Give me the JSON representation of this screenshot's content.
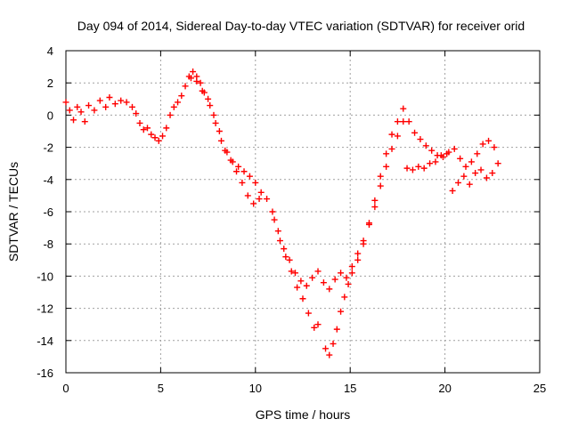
{
  "chart_data": {
    "type": "scatter",
    "title": "Day 094 of 2014, Sidereal Day-to-day VTEC variation (SDTVAR) for receiver orid",
    "xlabel": "GPS time / hours",
    "ylabel": "SDTVAR / TECUs",
    "xlim": [
      0,
      25
    ],
    "ylim": [
      -16,
      4
    ],
    "xticks": [
      0,
      5,
      10,
      15,
      20,
      25
    ],
    "yticks": [
      -16,
      -14,
      -12,
      -10,
      -8,
      -6,
      -4,
      -2,
      0,
      2,
      4
    ],
    "grid": true,
    "marker": "+",
    "color": "#ff0000",
    "series": [
      {
        "x": [
          0.0,
          0.2,
          0.4,
          0.6,
          0.8,
          1.0,
          1.2,
          1.5,
          1.8,
          2.1,
          2.3,
          2.6,
          2.9,
          3.2,
          3.5,
          3.7,
          3.9,
          4.1,
          4.3,
          4.5,
          4.7,
          4.9,
          5.1,
          5.3,
          5.5,
          5.7,
          5.9,
          6.1,
          6.3,
          6.5,
          6.7,
          6.9,
          7.1,
          7.3,
          7.6,
          7.9,
          8.2,
          8.5,
          8.8,
          9.1,
          9.4,
          9.7,
          10.0,
          10.3,
          10.6,
          10.9,
          11.2,
          11.5,
          11.8,
          12.1,
          12.4,
          12.7,
          13.0,
          13.3,
          13.6,
          13.9,
          14.2,
          14.5,
          14.8,
          15.1,
          15.4,
          15.7,
          16.0,
          16.3,
          16.6,
          16.9,
          17.2,
          17.5,
          17.8,
          18.1,
          18.4,
          18.7,
          19.0,
          19.3,
          19.6,
          19.9,
          20.2,
          20.5,
          20.8,
          21.1,
          21.4,
          21.7,
          22.0,
          22.3,
          22.6
        ],
        "y": [
          0.8,
          0.3,
          -0.3,
          0.5,
          0.2,
          -0.4,
          0.6,
          0.3,
          0.9,
          0.5,
          1.1,
          0.7,
          0.9,
          0.8,
          0.5,
          0.1,
          -0.5,
          -0.9,
          -0.8,
          -1.2,
          -1.4,
          -1.6,
          -1.3,
          -0.8,
          0.0,
          0.5,
          0.8,
          1.2,
          1.8,
          2.4,
          2.7,
          2.4,
          2.0,
          1.4,
          0.6,
          -0.5,
          -1.6,
          -2.3,
          -2.9,
          -3.2,
          -3.5,
          -3.8,
          -4.2,
          -4.8,
          -5.2,
          -6.0,
          -7.2,
          -8.3,
          -9.0,
          -9.8,
          -10.3,
          -10.6,
          -10.1,
          -9.7,
          -10.4,
          -10.8,
          -10.2,
          -9.8,
          -10.1,
          -9.4,
          -8.6,
          -7.8,
          -6.7,
          -5.3,
          -3.8,
          -2.4,
          -1.2,
          -0.4,
          0.4,
          -0.4,
          -1.1,
          -1.5,
          -1.9,
          -2.2,
          -2.5,
          -2.6,
          -2.3,
          -2.1,
          -2.7,
          -3.2,
          -2.9,
          -2.4,
          -1.8,
          -1.6,
          -2.0
        ]
      },
      {
        "x": [
          6.6,
          6.9,
          7.2,
          7.5,
          7.8,
          8.1,
          8.4,
          8.7,
          9.0,
          9.3,
          9.6,
          9.9,
          10.2,
          11.0,
          11.3,
          11.6,
          11.9,
          12.2,
          12.5,
          12.8,
          13.1,
          13.3,
          13.7,
          13.9,
          14.1,
          14.3,
          14.5,
          14.7,
          14.9,
          15.1,
          15.4,
          15.7,
          16.0,
          16.3,
          16.6,
          16.9,
          17.2,
          17.5,
          17.8,
          18.0,
          18.3,
          18.6,
          18.9,
          19.2,
          19.5,
          19.8,
          20.1,
          20.4,
          20.7,
          21.0,
          21.3,
          21.6,
          21.9,
          22.2,
          22.5,
          22.8
        ],
        "y": [
          2.3,
          2.1,
          1.5,
          1.0,
          0.0,
          -1.0,
          -2.2,
          -2.8,
          -3.5,
          -4.2,
          -5.0,
          -5.5,
          -5.2,
          -6.5,
          -7.8,
          -8.8,
          -9.7,
          -10.7,
          -11.4,
          -12.3,
          -13.2,
          -13.0,
          -14.5,
          -14.9,
          -14.2,
          -13.3,
          -12.2,
          -11.3,
          -10.5,
          -9.8,
          -9.0,
          -8.0,
          -6.8,
          -5.7,
          -4.4,
          -3.2,
          -2.1,
          -1.3,
          -0.4,
          -3.3,
          -3.4,
          -3.2,
          -3.3,
          -3.0,
          -2.9,
          -2.5,
          -2.4,
          -4.7,
          -4.2,
          -3.8,
          -4.3,
          -3.6,
          -3.4,
          -3.9,
          -3.6,
          -3.0
        ]
      }
    ]
  }
}
